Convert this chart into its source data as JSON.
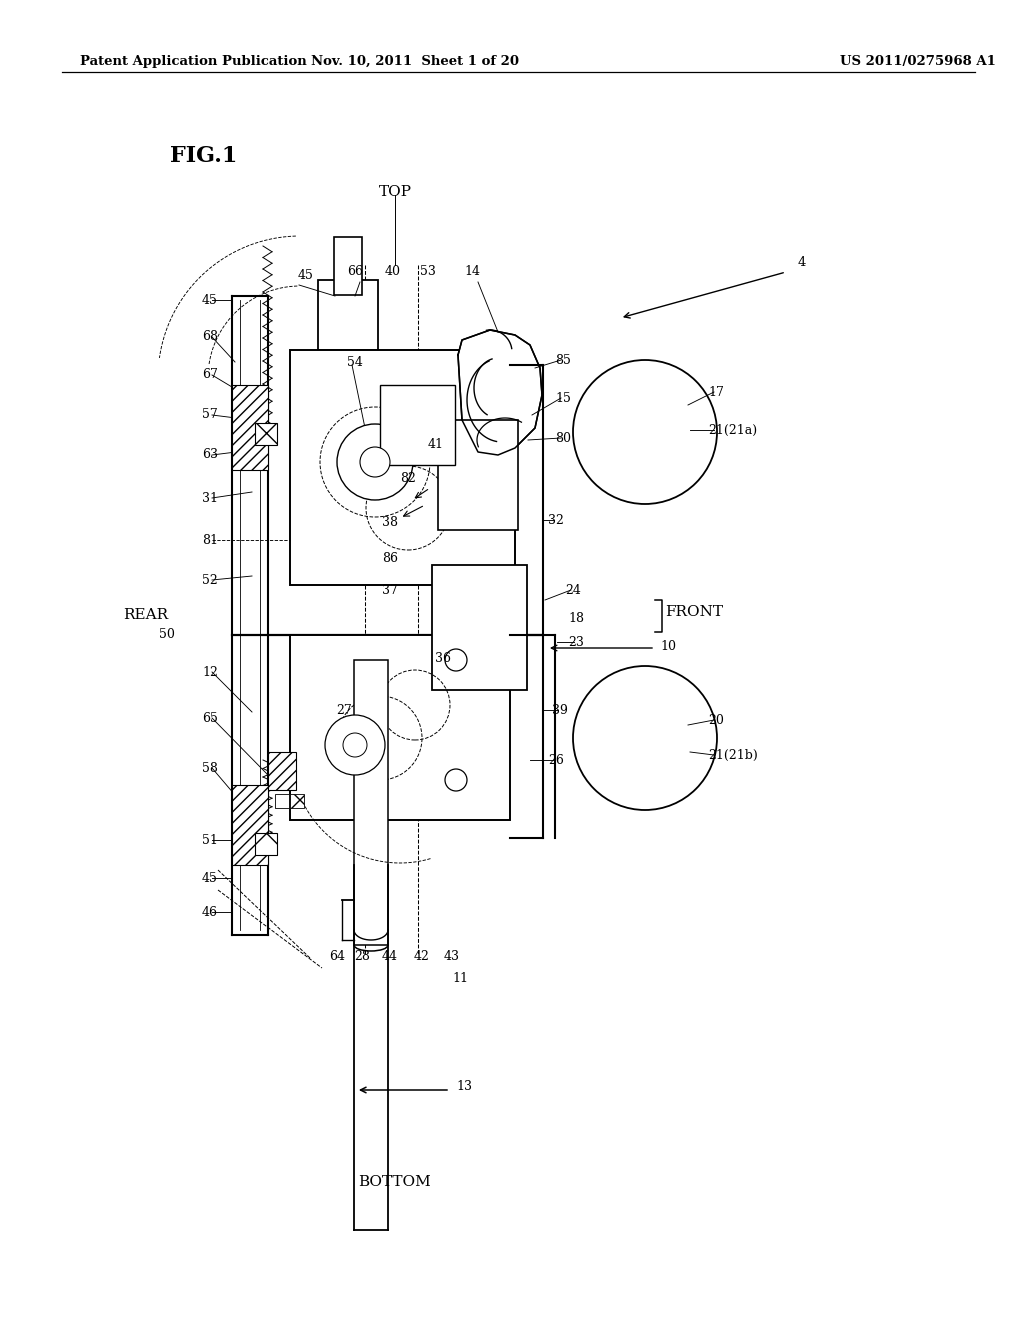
{
  "bg_color": "#ffffff",
  "header_left": "Patent Application Publication",
  "header_mid": "Nov. 10, 2011  Sheet 1 of 20",
  "header_right": "US 2011/0275968 A1",
  "fig_label": "FIG.1",
  "top_label": "TOP",
  "bottom_label": "BOTTOM",
  "rear_label": "REAR",
  "front_label": "FRONT"
}
